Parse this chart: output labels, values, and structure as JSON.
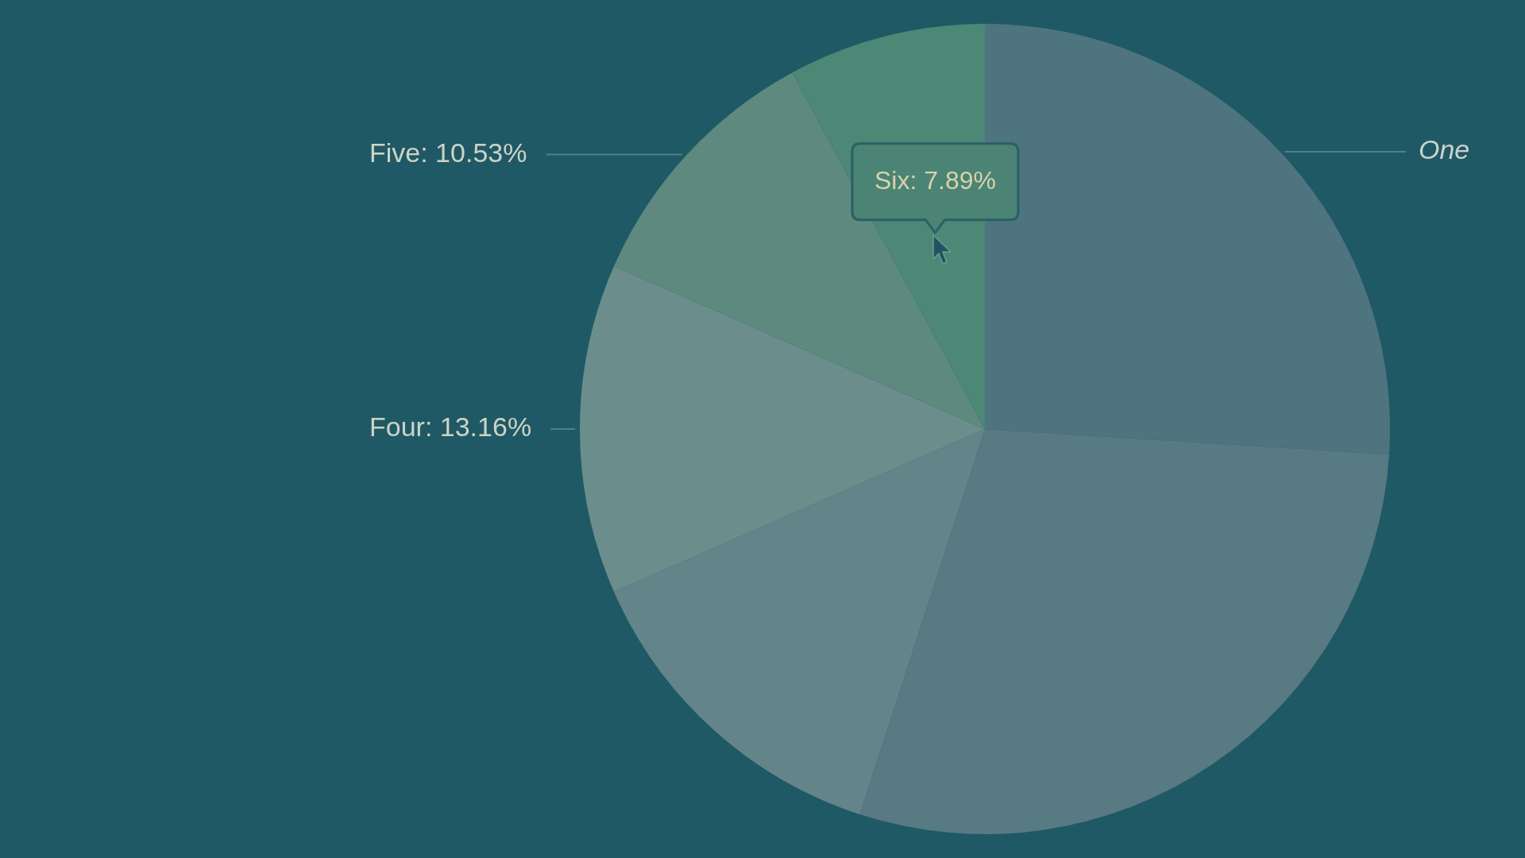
{
  "chart_data": {
    "type": "pie",
    "categories": [
      "One",
      null,
      null,
      "Four",
      "Five",
      "Six"
    ],
    "values": [
      26,
      29,
      13.42,
      13.16,
      10.53,
      7.89
    ],
    "colors": [
      "#4e7480",
      "#587a82",
      "#63858a",
      "#6b8d8c",
      "#5d897f",
      "#4d8775"
    ],
    "value_labels": [
      null,
      null,
      null,
      "13.16%",
      "10.53%",
      "7.89%"
    ]
  }
}
